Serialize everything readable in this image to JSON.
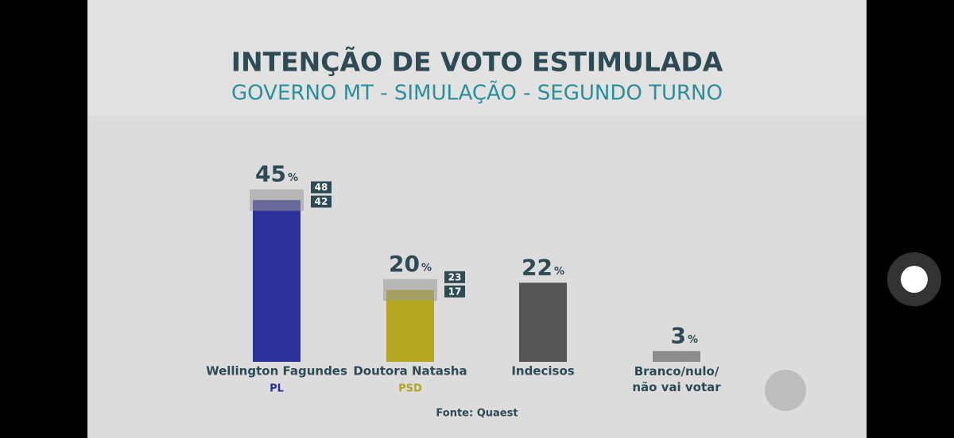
{
  "chart_data": {
    "type": "bar",
    "title": "INTENÇÃO DE VOTO ESTIMULADA",
    "subtitle": "GOVERNO MT - SIMULAÇÃO - SEGUNDO TURNO",
    "categories": [
      "Wellington Fagundes",
      "Doutora Natasha",
      "Indecisos",
      "Branco/nulo/ não vai votar"
    ],
    "parties": [
      "PL",
      "PSD",
      null,
      null
    ],
    "values": [
      45,
      20,
      22,
      3
    ],
    "upper": [
      48,
      23,
      null,
      null
    ],
    "lower": [
      42,
      17,
      null,
      null
    ],
    "unit": "%",
    "colors": [
      "#2b3199",
      "#b3a71f",
      "#555555",
      "#8c8c8c"
    ],
    "source": "Fonte: Quaest"
  }
}
